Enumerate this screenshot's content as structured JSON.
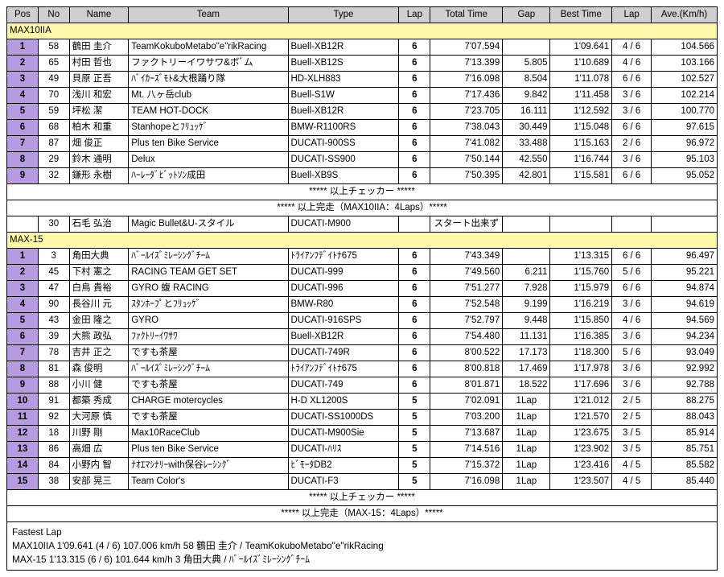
{
  "colors": {
    "header_bg": "#cfcfcf",
    "class_bg": "#fff8a8",
    "pos_fills": {
      "1": "#b79be0",
      "2": "#b79be0",
      "3": "#b79be0",
      "4": "#b79be0",
      "5": "#b79be0",
      "6": "#b79be0",
      "7": "#b79be0",
      "8": "#b79be0",
      "9": "#b79be0",
      "10": "#b79be0",
      "11": "#b79be0",
      "12": "#b79be0",
      "13": "#b79be0",
      "14": "#b79be0",
      "15": "#b79be0"
    }
  },
  "headers": [
    "Pos",
    "No",
    "Name",
    "Team",
    "Type",
    "Lap",
    "Total Time",
    "Gap",
    "Best Time",
    "Lap",
    "Ave.(Km/h)"
  ],
  "sections": [
    {
      "class_label": "MAX10IIA",
      "rows": [
        {
          "pos": "1",
          "no": "58",
          "name": "鶴田 圭介",
          "team": "TeamKokuboMetabo\"e\"rikRacing",
          "type": "Buell-XB12R",
          "lap": "6",
          "tt": "7'07.594",
          "gap": "",
          "bt": "1'09.641",
          "lap2": "4 / 6",
          "avg": "104.566"
        },
        {
          "pos": "2",
          "no": "65",
          "name": "村田 哲也",
          "team": "ファクトリーイワサワ&ボﾞム",
          "type": "Buell-XB12S",
          "lap": "6",
          "tt": "7'13.399",
          "gap": "5.805",
          "bt": "1'10.689",
          "lap2": "4 / 6",
          "avg": "103.166"
        },
        {
          "pos": "3",
          "no": "49",
          "name": "貝原 正吾",
          "team": "ﾊﾞｲｶｰｽﾞﾓﾄ&大根踊り隊",
          "type": "HD-XLH883",
          "lap": "6",
          "tt": "7'16.098",
          "gap": "8.504",
          "bt": "1'11.078",
          "lap2": "6 / 6",
          "avg": "102.527"
        },
        {
          "pos": "4",
          "no": "70",
          "name": "浅川 和宏",
          "team": "Mt. 八ヶ岳club",
          "type": "Buell-S1W",
          "lap": "6",
          "tt": "7'17.436",
          "gap": "9.842",
          "bt": "1'11.458",
          "lap2": "3 / 6",
          "avg": "102.214"
        },
        {
          "pos": "5",
          "no": "59",
          "name": "坪松 潔",
          "team": "TEAM HOT-DOCK",
          "type": "Buell-XB12R",
          "lap": "6",
          "tt": "7'23.705",
          "gap": "16.111",
          "bt": "1'12.592",
          "lap2": "3 / 6",
          "avg": "100.770"
        },
        {
          "pos": "6",
          "no": "68",
          "name": "柏木 和重",
          "team": "Stanhopeとﾌﾘｭｯｹﾞ",
          "type": "BMW-R1100RS",
          "lap": "6",
          "tt": "7'38.043",
          "gap": "30.449",
          "bt": "1'15.048",
          "lap2": "6 / 6",
          "avg": "97.615"
        },
        {
          "pos": "7",
          "no": "87",
          "name": "畑 俊正",
          "team": "Plus ten Bike Service",
          "type": "DUCATI-900SS",
          "lap": "6",
          "tt": "7'41.082",
          "gap": "33.488",
          "bt": "1'15.163",
          "lap2": "2 / 6",
          "avg": "96.972"
        },
        {
          "pos": "8",
          "no": "29",
          "name": "鈴木 通明",
          "team": "Delux",
          "type": "DUCATI-SS900",
          "lap": "6",
          "tt": "7'50.144",
          "gap": "42.550",
          "bt": "1'16.744",
          "lap2": "3 / 6",
          "avg": "95.103"
        },
        {
          "pos": "9",
          "no": "32",
          "name": "鎌形 永樹",
          "team": "ﾊｰﾚｰﾀﾞﾋﾞｯﾄｿﾝ成田",
          "type": "Buell-XB9S",
          "lap": "6",
          "tt": "7'50.395",
          "gap": "42.801",
          "bt": "1'15.581",
          "lap2": "6 / 6",
          "avg": "95.052"
        }
      ],
      "notes": [
        "***** 以上チェッカー *****",
        "***** 以上完走（MAX10IIA：4Laps）*****"
      ],
      "extra_rows": [
        {
          "pos": "",
          "no": "30",
          "name": "石毛 弘治",
          "team": "Magic Bullet&U-スタイル",
          "type": "DUCATI-M900",
          "lap": "",
          "tt": "スタート出来ず",
          "gap": "",
          "bt": "",
          "lap2": "",
          "avg": ""
        }
      ]
    },
    {
      "class_label": "MAX-15",
      "rows": [
        {
          "pos": "1",
          "no": "3",
          "name": "角田大典",
          "team": "ﾊﾞｰﾙｲｽﾞﾐﾚｰｼﾝｸﾞﾁｰﾑ",
          "type": "ﾄﾗｲｱﾝﾌﾃﾞｲﾄﾅ675",
          "lap": "6",
          "tt": "7'43.349",
          "gap": "",
          "bt": "1'13.315",
          "lap2": "6 / 6",
          "avg": "96.497"
        },
        {
          "pos": "2",
          "no": "45",
          "name": "下村 憲之",
          "team": "RACING TEAM GET SET",
          "type": "DUCATI-999",
          "lap": "6",
          "tt": "7'49.560",
          "gap": "6.211",
          "bt": "1'15.760",
          "lap2": "5 / 6",
          "avg": "95.221"
        },
        {
          "pos": "3",
          "no": "47",
          "name": "白鳥 貴裕",
          "team": "GYRO 蝮 RACING",
          "type": "DUCATI-996",
          "lap": "6",
          "tt": "7'51.277",
          "gap": "7.928",
          "bt": "1'15.979",
          "lap2": "6 / 6",
          "avg": "94.874"
        },
        {
          "pos": "4",
          "no": "90",
          "name": "長谷川 元",
          "team": "ｽﾀﾝﾎｰﾌﾟとﾌﾘｭｯｹﾞ",
          "type": "BMW-R80",
          "lap": "6",
          "tt": "7'52.548",
          "gap": "9.199",
          "bt": "1'16.219",
          "lap2": "3 / 6",
          "avg": "94.619"
        },
        {
          "pos": "5",
          "no": "43",
          "name": "金田 隆之",
          "team": "GYRO",
          "type": "DUCATI-916SPS",
          "lap": "6",
          "tt": "7'52.797",
          "gap": "9.448",
          "bt": "1'15.850",
          "lap2": "4 / 6",
          "avg": "94.569"
        },
        {
          "pos": "6",
          "no": "39",
          "name": "大熊 政弘",
          "team": "ﾌｧｸﾄﾘｰｲﾜｻﾜ",
          "type": "Buell-XB12R",
          "lap": "6",
          "tt": "7'54.480",
          "gap": "11.131",
          "bt": "1'16.385",
          "lap2": "3 / 6",
          "avg": "94.234"
        },
        {
          "pos": "7",
          "no": "78",
          "name": "吉井 正之",
          "team": "ですも茶屋",
          "type": "DUCATI-749R",
          "lap": "6",
          "tt": "8'00.522",
          "gap": "17.173",
          "bt": "1'18.300",
          "lap2": "5 / 6",
          "avg": "93.049"
        },
        {
          "pos": "8",
          "no": "81",
          "name": "森 俊明",
          "team": "ﾊﾞｰﾙｲｽﾞﾐﾚｰｼﾝｸﾞﾁｰﾑ",
          "type": "ﾄﾗｲｱﾝﾌﾃﾞｲﾄﾅ675",
          "lap": "6",
          "tt": "8'00.818",
          "gap": "17.469",
          "bt": "1'17.978",
          "lap2": "3 / 6",
          "avg": "92.992"
        },
        {
          "pos": "9",
          "no": "88",
          "name": "小川 健",
          "team": "ですも茶屋",
          "type": "DUCATI-749",
          "lap": "6",
          "tt": "8'01.871",
          "gap": "18.522",
          "bt": "1'17.696",
          "lap2": "3 / 6",
          "avg": "92.788"
        },
        {
          "pos": "10",
          "no": "91",
          "name": "都築 秀成",
          "team": "CHARGE motercycles",
          "type": "H-D XL1200S",
          "lap": "5",
          "tt": "7'02.091",
          "gap": "1Lap",
          "bt": "1'21.012",
          "lap2": "2 / 5",
          "avg": "88.275"
        },
        {
          "pos": "11",
          "no": "92",
          "name": "大河原 慎",
          "team": "ですも茶屋",
          "type": "DUCATI-SS1000DS",
          "lap": "5",
          "tt": "7'03.200",
          "gap": "1Lap",
          "bt": "1'21.570",
          "lap2": "2 / 5",
          "avg": "88.043"
        },
        {
          "pos": "12",
          "no": "18",
          "name": "川野 剛",
          "team": "Max10RaceClub",
          "type": "DUCATI-M900Sie",
          "lap": "5",
          "tt": "7'13.687",
          "gap": "1Lap",
          "bt": "1'23.675",
          "lap2": "3 / 5",
          "avg": "85.914"
        },
        {
          "pos": "13",
          "no": "86",
          "name": "高畑 広",
          "team": "Plus ten Bike Service",
          "type": "DUCATI-ﾊﾘｽ",
          "lap": "5",
          "tt": "7'14.516",
          "gap": "1Lap",
          "bt": "1'23.902",
          "lap2": "3 / 5",
          "avg": "85.751"
        },
        {
          "pos": "14",
          "no": "84",
          "name": "小野内 智",
          "team": "ﾅｵｴﾏｼﾅﾘｰwith保谷ﾚｰｼﾝｸﾞ",
          "type": "ﾋﾞﾓｰﾀDB2",
          "lap": "5",
          "tt": "7'15.372",
          "gap": "1Lap",
          "bt": "1'23.416",
          "lap2": "4 / 5",
          "avg": "85.582"
        },
        {
          "pos": "15",
          "no": "38",
          "name": "安部 晃三",
          "team": "Team Color's",
          "type": "DUCATI-F3",
          "lap": "5",
          "tt": "7'16.098",
          "gap": "1Lap",
          "bt": "1'23.507",
          "lap2": "4 / 5",
          "avg": "85.440"
        }
      ],
      "notes": [
        "***** 以上チェッカー *****",
        "***** 以上完走（MAX-15：4Laps）*****"
      ],
      "extra_rows": []
    }
  ],
  "footer": {
    "title": "Fastest Lap",
    "lines": [
      "MAX10IIA 1'09.641 (4 / 6) 107.006 km/h 58 鶴田 圭介 / TeamKokuboMetabo\"e\"rikRacing",
      "MAX-15 1'13.315 (6 / 6) 101.644 km/h 3 角田大典 / ﾊﾞｰﾙｲｽﾞﾐﾚｰｼﾝｸﾞﾁｰﾑ"
    ]
  }
}
